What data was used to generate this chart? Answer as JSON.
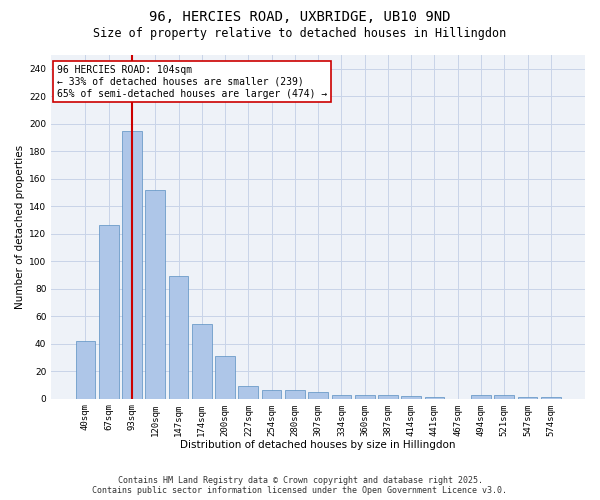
{
  "title_line1": "96, HERCIES ROAD, UXBRIDGE, UB10 9ND",
  "title_line2": "Size of property relative to detached houses in Hillingdon",
  "xlabel": "Distribution of detached houses by size in Hillingdon",
  "ylabel": "Number of detached properties",
  "categories": [
    "40sqm",
    "67sqm",
    "93sqm",
    "120sqm",
    "147sqm",
    "174sqm",
    "200sqm",
    "227sqm",
    "254sqm",
    "280sqm",
    "307sqm",
    "334sqm",
    "360sqm",
    "387sqm",
    "414sqm",
    "441sqm",
    "467sqm",
    "494sqm",
    "521sqm",
    "547sqm",
    "574sqm"
  ],
  "values": [
    42,
    126,
    195,
    152,
    89,
    54,
    31,
    9,
    6,
    6,
    5,
    3,
    3,
    3,
    2,
    1,
    0,
    3,
    3,
    1,
    1
  ],
  "bar_color": "#aec6e8",
  "bar_edge_color": "#5a8fc2",
  "vline_index": 2,
  "vline_color": "#cc0000",
  "annotation_text": "96 HERCIES ROAD: 104sqm\n← 33% of detached houses are smaller (239)\n65% of semi-detached houses are larger (474) →",
  "annotation_box_color": "#cc0000",
  "annotation_bg": "#ffffff",
  "ylim": [
    0,
    250
  ],
  "yticks": [
    0,
    20,
    40,
    60,
    80,
    100,
    120,
    140,
    160,
    180,
    200,
    220,
    240
  ],
  "grid_color": "#c8d4e8",
  "bg_color": "#eef2f8",
  "footer_text": "Contains HM Land Registry data © Crown copyright and database right 2025.\nContains public sector information licensed under the Open Government Licence v3.0.",
  "title_fontsize": 10,
  "subtitle_fontsize": 8.5,
  "axis_label_fontsize": 7.5,
  "tick_fontsize": 6.5,
  "footer_fontsize": 6,
  "annotation_fontsize": 7
}
